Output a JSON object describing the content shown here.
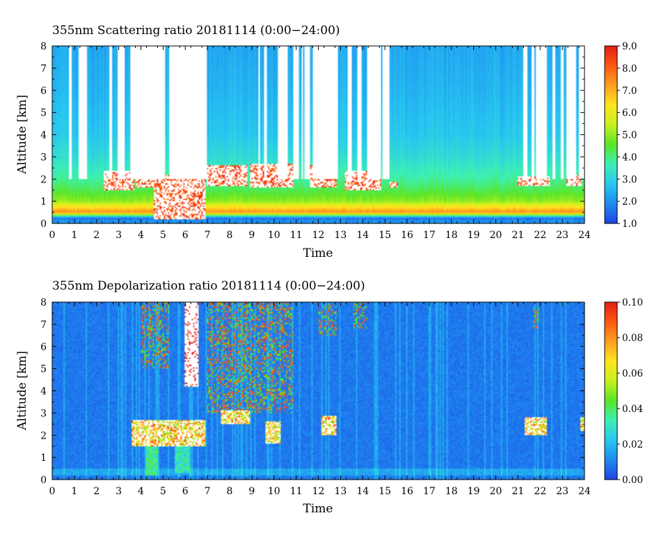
{
  "chart_data": [
    {
      "type": "heatmap",
      "title": "355nm Scattering ratio  20181114 (0:00−24:00)",
      "xlabel": "Time",
      "ylabel": "Altitude [km]",
      "xlim": [
        0,
        24
      ],
      "ylim": [
        0,
        8
      ],
      "x_ticks": [
        "0",
        "1",
        "2",
        "3",
        "4",
        "5",
        "6",
        "7",
        "8",
        "9",
        "10",
        "11",
        "12",
        "13",
        "14",
        "15",
        "16",
        "17",
        "18",
        "19",
        "20",
        "21",
        "22",
        "23",
        "24"
      ],
      "y_ticks": [
        "0",
        "1",
        "2",
        "3",
        "4",
        "5",
        "6",
        "7",
        "8"
      ],
      "colorbar": {
        "min": 1.0,
        "max": 9.0,
        "ticks": [
          "1.0",
          "2.0",
          "3.0",
          "4.0",
          "5.0",
          "6.0",
          "7.0",
          "8.0",
          "9.0"
        ],
        "colormap": [
          "#1e46e6",
          "#1e8cf0",
          "#28c8f0",
          "#3cf0b4",
          "#5ae628",
          "#c8f01e",
          "#ffe61e",
          "#ffa01e",
          "#ff5a14",
          "#e61e14"
        ]
      },
      "profile": {
        "altitude_km": [
          0.1,
          0.25,
          0.5,
          0.7,
          1.0,
          1.5,
          2.0,
          3.0,
          4.0,
          6.0,
          8.0
        ],
        "value": [
          2.0,
          1.5,
          7.5,
          6.5,
          5.0,
          4.3,
          3.8,
          3.2,
          2.8,
          2.5,
          2.3
        ]
      },
      "missing_data_color": "#ffffff",
      "blank_columns_h": [
        [
          0.78,
          0.9
        ],
        [
          1.18,
          1.6
        ],
        [
          2.58,
          2.72
        ],
        [
          2.95,
          3.25
        ],
        [
          3.52,
          5.12
        ],
        [
          5.3,
          6.95
        ],
        [
          9.28,
          9.38
        ],
        [
          9.58,
          9.68
        ],
        [
          10.2,
          10.6
        ],
        [
          10.85,
          11.1
        ],
        [
          11.25,
          11.32
        ],
        [
          11.4,
          11.6
        ],
        [
          11.72,
          12.9
        ],
        [
          13.3,
          13.5
        ],
        [
          13.75,
          13.95
        ],
        [
          14.22,
          14.85
        ],
        [
          14.92,
          15.2
        ],
        [
          21.25,
          21.45
        ],
        [
          21.6,
          21.75
        ],
        [
          21.82,
          22.3
        ],
        [
          22.58,
          22.65
        ],
        [
          22.95,
          23.05
        ],
        [
          23.2,
          23.6
        ],
        [
          23.75,
          24.0
        ]
      ],
      "clouds": [
        {
          "t_start": 2.3,
          "t_end": 3.7,
          "alt_low_km": 1.5,
          "alt_high_km": 2.4,
          "value": 9.0
        },
        {
          "t_start": 3.8,
          "t_end": 4.8,
          "alt_low_km": 1.6,
          "alt_high_km": 2.5,
          "value": 9.0
        },
        {
          "t_start": 4.6,
          "t_end": 6.9,
          "alt_low_km": 0.2,
          "alt_high_km": 2.2,
          "value": 9.0
        },
        {
          "t_start": 7.0,
          "t_end": 8.8,
          "alt_low_km": 1.7,
          "alt_high_km": 2.6,
          "value": 9.0
        },
        {
          "t_start": 8.9,
          "t_end": 10.9,
          "alt_low_km": 1.6,
          "alt_high_km": 2.7,
          "value": 9.0
        },
        {
          "t_start": 11.6,
          "t_end": 12.8,
          "alt_low_km": 1.6,
          "alt_high_km": 2.6,
          "value": 9.0
        },
        {
          "t_start": 13.2,
          "t_end": 14.8,
          "alt_low_km": 1.5,
          "alt_high_km": 2.4,
          "value": 9.0
        },
        {
          "t_start": 15.2,
          "t_end": 15.6,
          "alt_low_km": 1.6,
          "alt_high_km": 1.9,
          "value": 9.0
        },
        {
          "t_start": 21.0,
          "t_end": 22.4,
          "alt_low_km": 1.7,
          "alt_high_km": 2.1,
          "value": 9.0
        },
        {
          "t_start": 23.2,
          "t_end": 23.9,
          "alt_low_km": 1.7,
          "alt_high_km": 2.2,
          "value": 9.0
        }
      ]
    },
    {
      "type": "heatmap",
      "title": "355nm Depolarization ratio  20181114 (0:00−24:00)",
      "xlabel": "Time",
      "ylabel": "Altitude [km]",
      "xlim": [
        0,
        24
      ],
      "ylim": [
        0,
        8
      ],
      "x_ticks": [
        "0",
        "1",
        "2",
        "3",
        "4",
        "5",
        "6",
        "7",
        "8",
        "9",
        "10",
        "11",
        "12",
        "13",
        "14",
        "15",
        "16",
        "17",
        "18",
        "19",
        "20",
        "21",
        "22",
        "23",
        "24"
      ],
      "y_ticks": [
        "0",
        "1",
        "2",
        "3",
        "4",
        "5",
        "6",
        "7",
        "8"
      ],
      "colorbar": {
        "min": 0.0,
        "max": 0.1,
        "ticks": [
          "0.00",
          "0.02",
          "0.04",
          "0.06",
          "0.08",
          "0.10"
        ],
        "colormap": [
          "#1e46e6",
          "#1e8cf0",
          "#28c8f0",
          "#3cf0b4",
          "#5ae628",
          "#c8f01e",
          "#ffe61e",
          "#ffa01e",
          "#ff5a14",
          "#e61e14"
        ]
      },
      "background_value": 0.008,
      "saturated_color": "#ffffff",
      "features": [
        {
          "t_start": 4.2,
          "t_end": 4.8,
          "alt_low_km": 0.2,
          "alt_high_km": 1.6,
          "value": 0.04
        },
        {
          "t_start": 5.5,
          "t_end": 6.2,
          "alt_low_km": 0.3,
          "alt_high_km": 1.5,
          "value": 0.035
        },
        {
          "t_start": 3.6,
          "t_end": 6.9,
          "alt_low_km": 1.5,
          "alt_high_km": 2.7,
          "value": 0.09
        },
        {
          "t_start": 6.0,
          "t_end": 6.6,
          "alt_low_km": 4.2,
          "alt_high_km": 8.0,
          "value": 0.1
        },
        {
          "t_start": 7.6,
          "t_end": 8.9,
          "alt_low_km": 2.5,
          "alt_high_km": 3.1,
          "value": 0.09
        },
        {
          "t_start": 9.6,
          "t_end": 10.3,
          "alt_low_km": 1.6,
          "alt_high_km": 2.6,
          "value": 0.08
        },
        {
          "t_start": 12.1,
          "t_end": 12.8,
          "alt_low_km": 2.0,
          "alt_high_km": 2.9,
          "value": 0.09
        },
        {
          "t_start": 21.3,
          "t_end": 22.3,
          "alt_low_km": 2.0,
          "alt_high_km": 2.8,
          "value": 0.09
        },
        {
          "t_start": 23.8,
          "t_end": 24.0,
          "alt_low_km": 2.2,
          "alt_high_km": 2.8,
          "value": 0.09
        }
      ],
      "speckle_regions": [
        {
          "t_start": 4.0,
          "t_end": 5.3,
          "alt_low_km": 5.0,
          "alt_high_km": 8.0
        },
        {
          "t_start": 7.0,
          "t_end": 10.9,
          "alt_low_km": 3.0,
          "alt_high_km": 8.0
        },
        {
          "t_start": 12.0,
          "t_end": 12.8,
          "alt_low_km": 6.5,
          "alt_high_km": 8.0
        },
        {
          "t_start": 13.6,
          "t_end": 14.2,
          "alt_low_km": 6.8,
          "alt_high_km": 8.0
        },
        {
          "t_start": 21.7,
          "t_end": 21.9,
          "alt_low_km": 6.8,
          "alt_high_km": 7.8
        }
      ]
    }
  ]
}
